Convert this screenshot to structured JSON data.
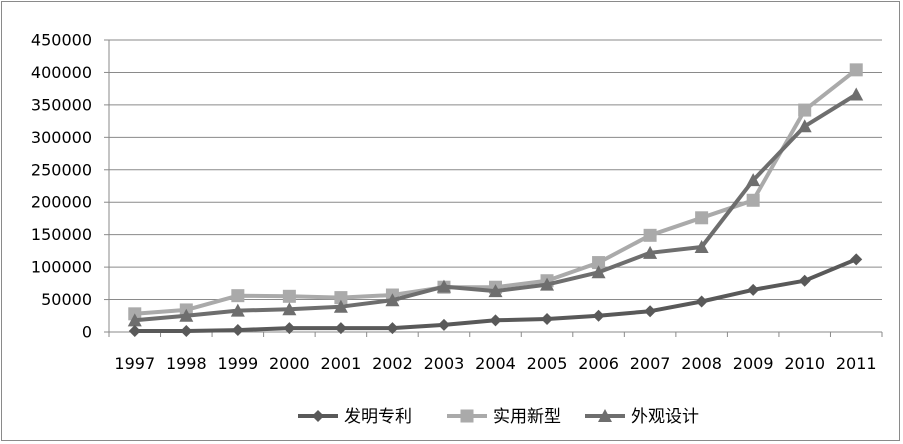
{
  "chart_data": {
    "type": "line",
    "title": "",
    "xlabel": "",
    "ylabel": "",
    "ylim": [
      0,
      450000
    ],
    "y_ticks": [
      0,
      50000,
      100000,
      150000,
      200000,
      250000,
      300000,
      350000,
      400000,
      450000
    ],
    "y_tick_labels": [
      "0",
      "50000",
      "100000",
      "150000",
      "200000",
      "250000",
      "300000",
      "350000",
      "400000",
      "450000"
    ],
    "grid": "horizontal",
    "legend_position": "bottom",
    "categories": [
      "1997",
      "1998",
      "1999",
      "2000",
      "2001",
      "2002",
      "2003",
      "2004",
      "2005",
      "2006",
      "2007",
      "2008",
      "2009",
      "2010",
      "2011"
    ],
    "series": [
      {
        "name": "发明专利",
        "color": "#595959",
        "marker": "diamond",
        "values": [
          1500,
          1500,
          3000,
          6000,
          6000,
          6000,
          11000,
          18000,
          20000,
          25000,
          32000,
          47000,
          65000,
          79000,
          112000
        ]
      },
      {
        "name": "实用新型",
        "color": "#aaaaaa",
        "marker": "square",
        "values": [
          28000,
          34000,
          56000,
          55000,
          53000,
          57000,
          69000,
          69000,
          79000,
          107000,
          149000,
          176000,
          203000,
          342000,
          404000
        ]
      },
      {
        "name": "外观设计",
        "color": "#6e6e6e",
        "marker": "triangle",
        "values": [
          18000,
          25000,
          33000,
          35000,
          39000,
          49000,
          70000,
          63000,
          73000,
          92000,
          122000,
          131000,
          234000,
          317000,
          366000
        ]
      }
    ]
  }
}
